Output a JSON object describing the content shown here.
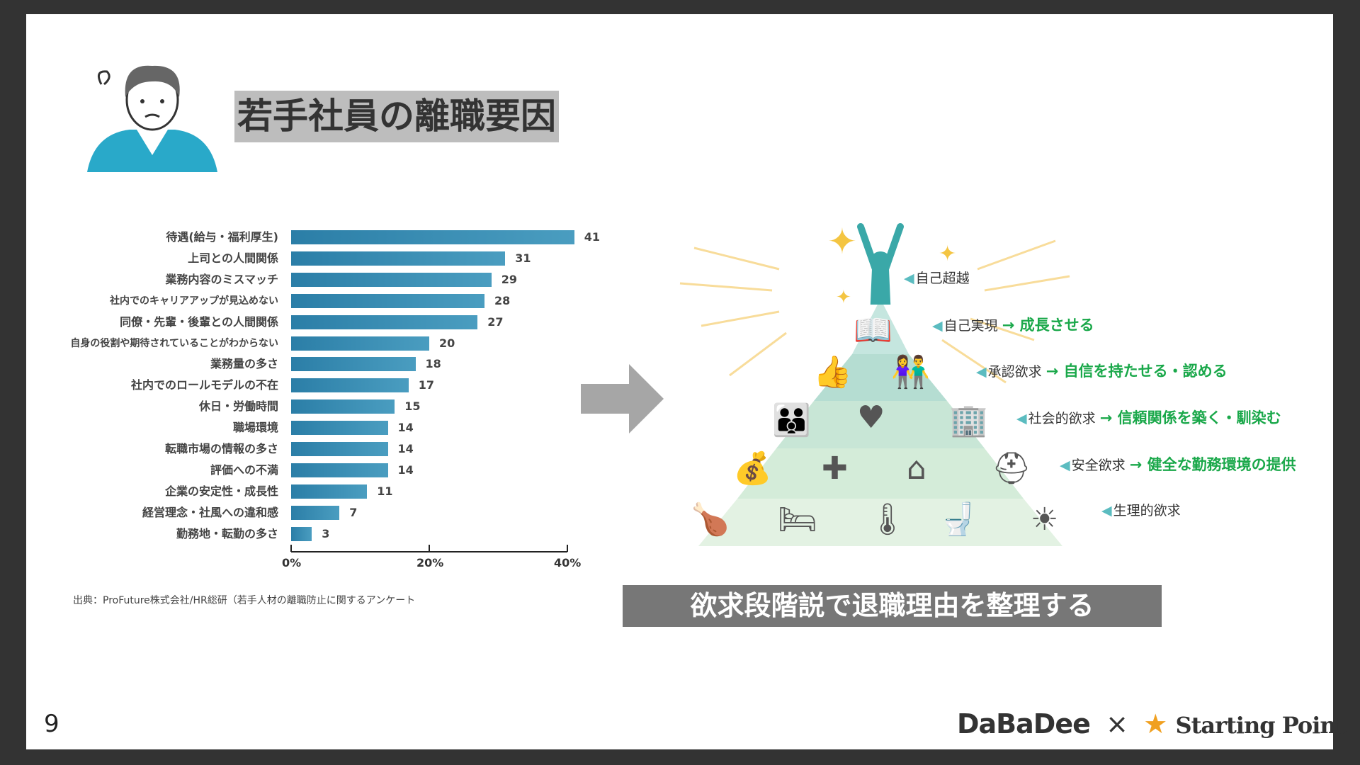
{
  "title": "若手社員の離職要因",
  "chart_data": {
    "type": "bar",
    "orientation": "horizontal",
    "categories": [
      "待遇(給与・福利厚生)",
      "上司との人間関係",
      "業務内容のミスマッチ",
      "社内でのキャリアアップが見込めない",
      "同僚・先輩・後輩との人間関係",
      "自身の役割や期待されていることがわからない",
      "業務量の多さ",
      "社内でのロールモデルの不在",
      "休日・労働時間",
      "職場環境",
      "転職市場の情報の多さ",
      "評価への不満",
      "企業の安定性・成長性",
      "経営理念・社風への違和感",
      "勤務地・転勤の多さ"
    ],
    "values": [
      41,
      31,
      29,
      28,
      27,
      20,
      18,
      17,
      15,
      14,
      14,
      14,
      11,
      7,
      3
    ],
    "xlim": [
      0,
      40
    ],
    "xticks": [
      "0%",
      "20%",
      "40%"
    ],
    "bar_color": "#2b7ea7",
    "grid": false
  },
  "source": "出典：ProFuture株式会社/HR総研（若手人材の離職防止に関するアンケート",
  "pyramid": {
    "levels": [
      {
        "name": "自己超越",
        "action": ""
      },
      {
        "name": "自己実現",
        "action": "→ 成長させる"
      },
      {
        "name": "承認欲求",
        "action": "→ 自信を持たせる・認める"
      },
      {
        "name": "社会的欲求",
        "action": "→ 信頼関係を築く・馴染む"
      },
      {
        "name": "安全欲求",
        "action": "→ 健全な勤務環境の提供"
      },
      {
        "name": "生理的欲求",
        "action": ""
      }
    ],
    "accent": "#1aa84a"
  },
  "banner": "欲求段階説で退職理由を整理する",
  "page_number": "9",
  "logo": {
    "left": "DaBaDee",
    "sep": "×",
    "right": "Starting Point"
  }
}
